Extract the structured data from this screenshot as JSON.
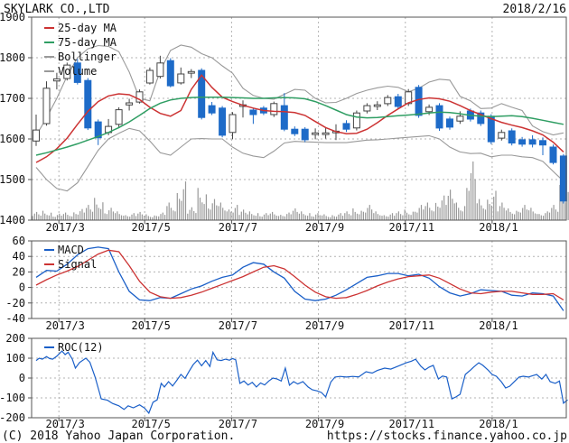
{
  "header": {
    "title": "SKYLARK CO.,LTD",
    "date": "2018/2/16"
  },
  "footer": {
    "copyright": "(C) 2018 Yahoo Japan Corporation.",
    "url": "https://stocks.finance.yahoo.co.jp"
  },
  "colors": {
    "up": "#ffffff",
    "up_border": "#444444",
    "down": "#1e6bc8",
    "ma25": "#cc3333",
    "ma75": "#2f9e63",
    "gray": "#999999",
    "grid": "#b3b3b3",
    "axis": "#555555",
    "macd": "#1a5fc8",
    "signal": "#cc3333",
    "roc": "#1a5fc8",
    "volume": "#999999",
    "text": "#111111"
  },
  "chart_data": [
    {
      "type": "candlestick",
      "panel": "price",
      "title": "SKYLARK CO.,LTD weekly price with 25/75-day MA, Bollinger bands and volume",
      "legend": [
        "25-day MA",
        "75-day MA",
        "Bollinger",
        "Volume"
      ],
      "y_ticks": [
        1900,
        1800,
        1700,
        1600,
        1500,
        1400
      ],
      "ylim": [
        1400,
        1900
      ],
      "grid": true,
      "legend_position": "top-left",
      "x_ticks": {
        "labels": [
          "2017/3",
          "2017/5",
          "2017/7",
          "2017/9",
          "2017/11",
          "2018/1"
        ],
        "weeks": [
          2.2,
          10.5,
          18.9,
          27.3,
          35.7,
          44.1
        ]
      },
      "candles": [
        [
          1595,
          1660,
          1583,
          1622
        ],
        [
          1638,
          1742,
          1633,
          1725
        ],
        [
          1743,
          1763,
          1722,
          1748
        ],
        [
          1749,
          1788,
          1744,
          1782
        ],
        [
          1787,
          1797,
          1734,
          1739
        ],
        [
          1744,
          1750,
          1622,
          1627
        ],
        [
          1642,
          1648,
          1585,
          1603
        ],
        [
          1616,
          1649,
          1609,
          1631
        ],
        [
          1636,
          1678,
          1629,
          1672
        ],
        [
          1684,
          1699,
          1670,
          1689
        ],
        [
          1691,
          1722,
          1687,
          1716
        ],
        [
          1738,
          1776,
          1734,
          1769
        ],
        [
          1754,
          1805,
          1749,
          1787
        ],
        [
          1793,
          1799,
          1727,
          1731
        ],
        [
          1738,
          1776,
          1734,
          1760
        ],
        [
          1762,
          1772,
          1750,
          1766
        ],
        [
          1769,
          1774,
          1648,
          1653
        ],
        [
          1682,
          1691,
          1659,
          1664
        ],
        [
          1676,
          1681,
          1604,
          1609
        ],
        [
          1616,
          1666,
          1599,
          1660
        ],
        [
          1680,
          1695,
          1653,
          1684
        ],
        [
          1671,
          1677,
          1637,
          1660
        ],
        [
          1676,
          1681,
          1659,
          1664
        ],
        [
          1660,
          1692,
          1654,
          1687
        ],
        [
          1682,
          1713,
          1619,
          1624
        ],
        [
          1624,
          1631,
          1607,
          1613
        ],
        [
          1624,
          1629,
          1592,
          1598
        ],
        [
          1611,
          1626,
          1599,
          1615
        ],
        [
          1611,
          1629,
          1601,
          1615
        ],
        [
          1615,
          1636,
          1597,
          1619
        ],
        [
          1638,
          1646,
          1617,
          1624
        ],
        [
          1627,
          1670,
          1621,
          1664
        ],
        [
          1669,
          1688,
          1663,
          1682
        ],
        [
          1680,
          1693,
          1671,
          1684
        ],
        [
          1687,
          1708,
          1681,
          1702
        ],
        [
          1704,
          1711,
          1674,
          1680
        ],
        [
          1687,
          1723,
          1681,
          1716
        ],
        [
          1727,
          1733,
          1652,
          1658
        ],
        [
          1667,
          1685,
          1659,
          1678
        ],
        [
          1682,
          1688,
          1620,
          1627
        ],
        [
          1649,
          1655,
          1623,
          1629
        ],
        [
          1644,
          1668,
          1637,
          1656
        ],
        [
          1669,
          1675,
          1643,
          1649
        ],
        [
          1664,
          1670,
          1632,
          1638
        ],
        [
          1656,
          1661,
          1587,
          1593
        ],
        [
          1602,
          1623,
          1596,
          1616
        ],
        [
          1620,
          1626,
          1584,
          1590
        ],
        [
          1598,
          1605,
          1581,
          1587
        ],
        [
          1598,
          1609,
          1579,
          1587
        ],
        [
          1596,
          1604,
          1560,
          1585
        ],
        [
          1580,
          1586,
          1537,
          1542
        ],
        [
          1558,
          1563,
          1441,
          1447
        ]
      ],
      "ma25": [
        1542,
        1556,
        1576,
        1602,
        1636,
        1668,
        1692,
        1706,
        1711,
        1709,
        1697,
        1678,
        1663,
        1656,
        1670,
        1722,
        1757,
        1727,
        1703,
        1692,
        1683,
        1676,
        1670,
        1668,
        1667,
        1665,
        1658,
        1643,
        1628,
        1618,
        1613,
        1614,
        1624,
        1640,
        1658,
        1674,
        1689,
        1697,
        1701,
        1699,
        1693,
        1682,
        1670,
        1660,
        1650,
        1641,
        1634,
        1628,
        1620,
        1610,
        1592,
        1568
      ],
      "ma75": [
        1560,
        1566,
        1573,
        1580,
        1588,
        1597,
        1606,
        1616,
        1628,
        1642,
        1658,
        1675,
        1688,
        1696,
        1700,
        1702,
        1703,
        1703,
        1703,
        1702,
        1701,
        1700,
        1700,
        1701,
        1702,
        1701,
        1699,
        1692,
        1682,
        1671,
        1660,
        1654,
        1652,
        1653,
        1655,
        1657,
        1659,
        1661,
        1664,
        1666,
        1665,
        1662,
        1658,
        1656,
        1655,
        1656,
        1657,
        1655,
        1651,
        1646,
        1641,
        1636
      ],
      "bollinger_upper": [
        1608,
        1652,
        1700,
        1755,
        1800,
        1822,
        1830,
        1828,
        1815,
        1765,
        1700,
        1694,
        1768,
        1818,
        1831,
        1826,
        1810,
        1800,
        1780,
        1762,
        1725,
        1707,
        1700,
        1698,
        1710,
        1722,
        1720,
        1700,
        1689,
        1690,
        1700,
        1712,
        1720,
        1726,
        1730,
        1727,
        1716,
        1725,
        1740,
        1747,
        1745,
        1705,
        1694,
        1675,
        1676,
        1687,
        1678,
        1670,
        1632,
        1618,
        1610,
        1615
      ],
      "bollinger_lower": [
        1530,
        1500,
        1478,
        1472,
        1492,
        1532,
        1572,
        1600,
        1614,
        1626,
        1620,
        1595,
        1566,
        1560,
        1580,
        1600,
        1601,
        1600,
        1600,
        1580,
        1565,
        1558,
        1554,
        1570,
        1590,
        1594,
        1593,
        1592,
        1591,
        1591,
        1591,
        1594,
        1597,
        1598,
        1600,
        1602,
        1604,
        1606,
        1608,
        1600,
        1580,
        1568,
        1564,
        1565,
        1556,
        1560,
        1560,
        1556,
        1554,
        1545,
        1520,
        1496
      ],
      "volume": [
        14,
        16,
        11,
        13,
        19,
        26,
        38,
        21,
        15,
        12,
        14,
        10,
        13,
        30,
        66,
        22,
        55,
        36,
        30,
        26,
        18,
        15,
        12,
        14,
        13,
        20,
        15,
        12,
        10,
        12,
        15,
        20,
        26,
        15,
        12,
        15,
        18,
        26,
        30,
        42,
        52,
        30,
        100,
        36,
        50,
        30,
        20,
        26,
        21,
        15,
        26,
        60
      ]
    },
    {
      "type": "line",
      "panel": "macd",
      "legend": [
        "MACD",
        "Signal"
      ],
      "y_ticks": [
        60,
        40,
        20,
        0,
        -20,
        -40
      ],
      "ylim": [
        -40,
        60
      ],
      "grid": true,
      "legend_position": "top-left",
      "x_ticks_shared": true,
      "series": [
        {
          "name": "MACD",
          "values": [
            13,
            22,
            21,
            30,
            42,
            50,
            52,
            50,
            20,
            -5,
            -16,
            -17,
            -13,
            -14,
            -8,
            -2,
            2,
            8,
            13,
            16,
            26,
            32,
            30,
            20,
            12,
            -5,
            -15,
            -17,
            -15,
            -10,
            -3,
            5,
            13,
            15,
            18,
            18,
            15,
            17,
            12,
            1,
            -7,
            -11,
            -8,
            -3,
            -4,
            -5,
            -10,
            -11,
            -7,
            -8,
            -11,
            -30
          ]
        },
        {
          "name": "Signal",
          "values": [
            3,
            10,
            16,
            21,
            27,
            35,
            43,
            48,
            46,
            28,
            8,
            -6,
            -12,
            -14,
            -13,
            -10,
            -6,
            -1,
            4,
            9,
            14,
            20,
            26,
            28,
            24,
            14,
            3,
            -6,
            -12,
            -14,
            -13,
            -9,
            -4,
            2,
            7,
            11,
            14,
            15,
            16,
            12,
            5,
            -2,
            -7,
            -8,
            -6,
            -5,
            -5,
            -7,
            -9,
            -9,
            -8,
            -16
          ]
        }
      ]
    },
    {
      "type": "line",
      "panel": "roc",
      "legend": [
        "ROC(12)"
      ],
      "y_ticks": [
        200,
        100,
        0,
        -100,
        -200
      ],
      "ylim": [
        -200,
        200
      ],
      "grid": true,
      "legend_position": "top-left",
      "x_ticks_shared": true,
      "series": [
        {
          "name": "ROC(12)",
          "points": [
            [
              0,
              88
            ],
            [
              0.3,
              100
            ],
            [
              0.6,
              95
            ],
            [
              1,
              108
            ],
            [
              1.3,
              98
            ],
            [
              1.6,
              95
            ],
            [
              2,
              110
            ],
            [
              2.5,
              136
            ],
            [
              2.8,
              118
            ],
            [
              3.1,
              130
            ],
            [
              3.5,
              95
            ],
            [
              3.8,
              50
            ],
            [
              4.2,
              78
            ],
            [
              4.8,
              100
            ],
            [
              5.2,
              80
            ],
            [
              5.7,
              5
            ],
            [
              6.3,
              -105
            ],
            [
              6.9,
              -112
            ],
            [
              7.4,
              -128
            ],
            [
              8,
              -140
            ],
            [
              8.5,
              -158
            ],
            [
              8.9,
              -140
            ],
            [
              9.4,
              -150
            ],
            [
              10,
              -135
            ],
            [
              10.5,
              -152
            ],
            [
              10.9,
              -177
            ],
            [
              11.3,
              -122
            ],
            [
              11.7,
              -110
            ],
            [
              12.1,
              -27
            ],
            [
              12.4,
              -45
            ],
            [
              12.8,
              -18
            ],
            [
              13.2,
              -40
            ],
            [
              13.6,
              -12
            ],
            [
              14,
              18
            ],
            [
              14.4,
              -2
            ],
            [
              14.8,
              35
            ],
            [
              15.2,
              68
            ],
            [
              15.6,
              90
            ],
            [
              16,
              62
            ],
            [
              16.4,
              88
            ],
            [
              16.8,
              58
            ],
            [
              17.1,
              130
            ],
            [
              17.5,
              92
            ],
            [
              17.9,
              88
            ],
            [
              18.3,
              95
            ],
            [
              18.7,
              90
            ],
            [
              19,
              98
            ],
            [
              19.3,
              92
            ],
            [
              19.7,
              -27
            ],
            [
              20.1,
              -15
            ],
            [
              20.5,
              -35
            ],
            [
              20.9,
              -22
            ],
            [
              21.3,
              -45
            ],
            [
              21.7,
              -25
            ],
            [
              22.1,
              -35
            ],
            [
              22.5,
              -15
            ],
            [
              22.9,
              0
            ],
            [
              23.3,
              -5
            ],
            [
              23.7,
              -15
            ],
            [
              24.1,
              50
            ],
            [
              24.5,
              -36
            ],
            [
              24.9,
              -18
            ],
            [
              25.3,
              -30
            ],
            [
              25.8,
              -18
            ],
            [
              26.3,
              -45
            ],
            [
              26.7,
              -59
            ],
            [
              27.2,
              -65
            ],
            [
              27.6,
              -73
            ],
            [
              28,
              -95
            ],
            [
              28.5,
              -20
            ],
            [
              28.9,
              5
            ],
            [
              29.4,
              8
            ],
            [
              30,
              5
            ],
            [
              30.6,
              8
            ],
            [
              31.2,
              6
            ],
            [
              31.9,
              32
            ],
            [
              32.5,
              25
            ],
            [
              33,
              38
            ],
            [
              33.7,
              50
            ],
            [
              34.3,
              45
            ],
            [
              35,
              60
            ],
            [
              35.8,
              77
            ],
            [
              36.3,
              85
            ],
            [
              36.7,
              95
            ],
            [
              37.2,
              60
            ],
            [
              37.6,
              41
            ],
            [
              38,
              55
            ],
            [
              38.4,
              64
            ],
            [
              38.9,
              -5
            ],
            [
              39.3,
              10
            ],
            [
              39.7,
              5
            ],
            [
              40.2,
              -105
            ],
            [
              40.6,
              -95
            ],
            [
              41,
              -82
            ],
            [
              41.5,
              18
            ],
            [
              42,
              40
            ],
            [
              42.3,
              55
            ],
            [
              42.8,
              77
            ],
            [
              43.2,
              64
            ],
            [
              43.7,
              40
            ],
            [
              44.1,
              18
            ],
            [
              44.5,
              9
            ],
            [
              45,
              -20
            ],
            [
              45.4,
              -50
            ],
            [
              45.8,
              -41
            ],
            [
              46.2,
              -20
            ],
            [
              46.7,
              5
            ],
            [
              47.1,
              9
            ],
            [
              47.6,
              5
            ],
            [
              48,
              12
            ],
            [
              48.4,
              18
            ],
            [
              48.9,
              -5
            ],
            [
              49.3,
              18
            ],
            [
              49.7,
              -18
            ],
            [
              50.2,
              -27
            ],
            [
              50.6,
              -15
            ],
            [
              51,
              -127
            ],
            [
              51.4,
              -110
            ]
          ]
        }
      ]
    }
  ]
}
